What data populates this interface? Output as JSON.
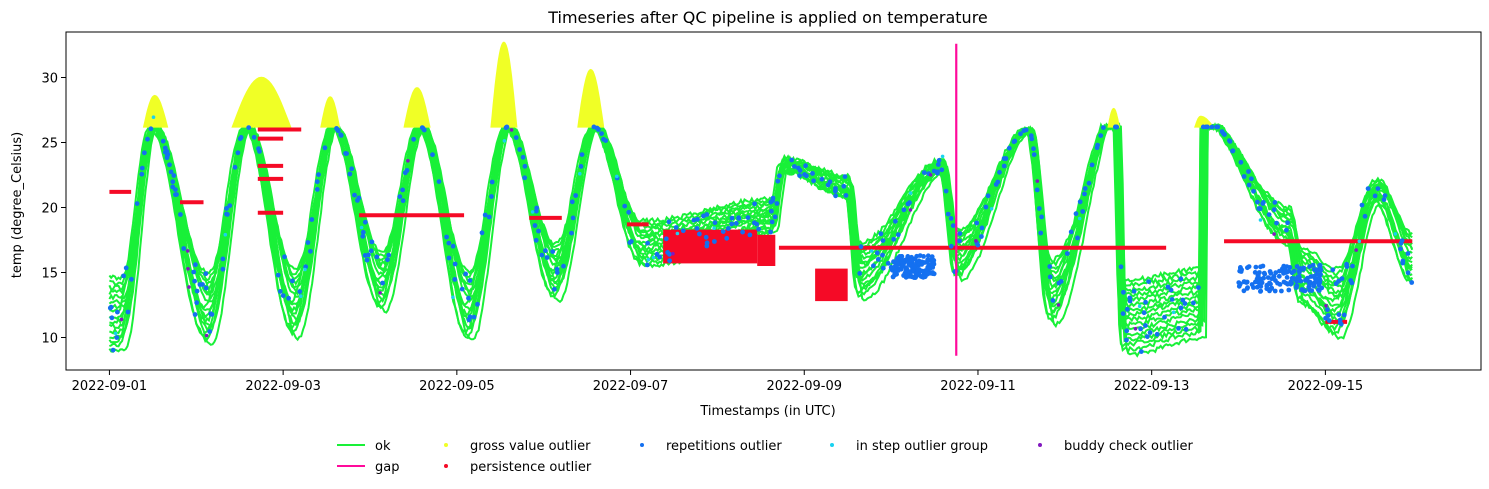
{
  "chart_data": {
    "type": "line",
    "title": "Timeseries after QC pipeline is applied on temperature",
    "xlabel": "Timestamps (in UTC)",
    "ylabel": "temp (degree_Celsius)",
    "x_axis": {
      "type": "date",
      "min": "2022-08-31T12:00",
      "max": "2022-09-16T19:00"
    },
    "xticks": [
      "2022-09-01",
      "2022-09-03",
      "2022-09-05",
      "2022-09-07",
      "2022-09-09",
      "2022-09-11",
      "2022-09-13",
      "2022-09-15"
    ],
    "ylim": [
      7.5,
      33.5
    ],
    "yticks": [
      10,
      15,
      20,
      25,
      30
    ],
    "grid": false,
    "legend_position": "bottom-center",
    "colors": {
      "ok": "#19f038",
      "gap": "#ff0a9b",
      "gross_value_outlier": "#f0ff26",
      "persistence_outlier": "#f50a26",
      "repetitions_outlier": "#1470f0",
      "in_step_outlier_group": "#19d2f0",
      "buddy_check_outlier": "#8219bf"
    },
    "series": [
      {
        "name": "ok",
        "kind": "line",
        "color": "#19f038"
      },
      {
        "name": "gap",
        "kind": "line",
        "color": "#ff0a9b"
      },
      {
        "name": "gross value outlier",
        "kind": "marker",
        "color": "#f0ff26"
      },
      {
        "name": "persistence outlier",
        "kind": "marker",
        "color": "#f50a26"
      },
      {
        "name": "repetitions outlier",
        "kind": "marker",
        "color": "#1470f0"
      },
      {
        "name": "in step outlier group",
        "kind": "marker",
        "color": "#19d2f0"
      },
      {
        "name": "buddy check outlier",
        "kind": "marker",
        "color": "#8219bf"
      }
    ],
    "ok_daily_cycle": {
      "min_times": [
        "2022-09-01T03:00",
        "2022-09-02T03:00",
        "2022-09-03T03:00",
        "2022-09-04T03:00",
        "2022-09-05T03:00",
        "2022-09-06T03:00",
        "2022-09-07T03:00",
        "2022-09-08T15:00",
        "2022-09-09T15:00",
        "2022-09-10T18:00",
        "2022-09-11T20:00",
        "2022-09-12T16:00",
        "2022-09-13T14:00",
        "2022-09-14T17:00",
        "2022-09-15T03:00",
        "2022-09-16T00:00"
      ],
      "min_values": [
        9,
        9.5,
        10,
        12,
        9.7,
        12.9,
        15.5,
        18.0,
        13.0,
        14.5,
        11.0,
        8.7,
        10.0,
        12.5,
        10.0,
        14.0
      ],
      "max_times": [
        "2022-09-01T12:00",
        "2022-09-02T14:00",
        "2022-09-03T14:00",
        "2022-09-04T14:00",
        "2022-09-05T14:00",
        "2022-09-06T14:00",
        "2022-09-08T18:00",
        "2022-09-09T12:00",
        "2022-09-10T14:00",
        "2022-09-11T14:00",
        "2022-09-12T14:00",
        "2022-09-13T14:00",
        "2022-09-14T14:00",
        "2022-09-15T14:00"
      ],
      "max_values": [
        26.2,
        26.2,
        26.2,
        26.2,
        26.2,
        26.2,
        22.7,
        20.7,
        22.6,
        26,
        27.5,
        27.0,
        17.0,
        20.3
      ],
      "spread": 4
    },
    "gross_value_outlier": [
      {
        "start": "2022-09-01T09:30",
        "end": "2022-09-01T16:00",
        "peak": "2022-09-01T12:30",
        "top": 28.6,
        "floor": 26.2
      },
      {
        "start": "2022-09-02T10:00",
        "end": "2022-09-03T02:00",
        "peak": "2022-09-02T18:00",
        "top": 30.0,
        "floor": 26.2
      },
      {
        "start": "2022-09-03T10:30",
        "end": "2022-09-03T15:30",
        "peak": "2022-09-03T13:00",
        "top": 28.5,
        "floor": 26.2
      },
      {
        "start": "2022-09-04T09:30",
        "end": "2022-09-04T16:30",
        "peak": "2022-09-04T13:00",
        "top": 29.2,
        "floor": 26.2
      },
      {
        "start": "2022-09-05T09:30",
        "end": "2022-09-05T16:30",
        "peak": "2022-09-05T13:00",
        "top": 32.7,
        "floor": 26.2
      },
      {
        "start": "2022-09-06T09:30",
        "end": "2022-09-06T16:30",
        "peak": "2022-09-06T13:00",
        "top": 30.6,
        "floor": 26.2
      },
      {
        "start": "2022-09-12T12:00",
        "end": "2022-09-12T15:00",
        "peak": "2022-09-12T13:30",
        "top": 27.6,
        "floor": 26.2
      },
      {
        "start": "2022-09-13T12:00",
        "end": "2022-09-13T17:00",
        "peak": "2022-09-13T13:30",
        "top": 27.0,
        "floor": 26.2
      }
    ],
    "persistence_segments": [
      {
        "start": "2022-09-01T00:00",
        "end": "2022-09-01T06:00",
        "value": 21.2
      },
      {
        "start": "2022-09-01T19:30",
        "end": "2022-09-02T02:00",
        "value": 20.4
      },
      {
        "start": "2022-09-02T17:00",
        "end": "2022-09-03T05:00",
        "value": 26.0
      },
      {
        "start": "2022-09-02T17:00",
        "end": "2022-09-03T00:00",
        "value": 25.3
      },
      {
        "start": "2022-09-02T17:00",
        "end": "2022-09-03T00:00",
        "value": 23.2
      },
      {
        "start": "2022-09-02T17:00",
        "end": "2022-09-03T00:00",
        "value": 22.2
      },
      {
        "start": "2022-09-02T17:00",
        "end": "2022-09-03T00:00",
        "value": 19.6
      },
      {
        "start": "2022-09-03T21:00",
        "end": "2022-09-05T02:00",
        "value": 19.4
      },
      {
        "start": "2022-09-05T20:00",
        "end": "2022-09-06T05:00",
        "value": 19.2
      },
      {
        "start": "2022-09-06T23:00",
        "end": "2022-09-07T05:00",
        "value": 18.7
      },
      {
        "start": "2022-09-08T17:00",
        "end": "2022-09-10T23:00",
        "value": 16.9
      },
      {
        "start": "2022-09-10T23:00",
        "end": "2022-09-13T04:00",
        "value": 16.9
      },
      {
        "start": "2022-09-13T20:00",
        "end": "2022-09-16T00:00",
        "value": 17.4
      },
      {
        "start": "2022-09-15T00:00",
        "end": "2022-09-15T06:00",
        "value": 11.2
      }
    ],
    "persistence_blocks": [
      {
        "start": "2022-09-07T09:00",
        "end": "2022-09-08T11:00",
        "low": 15.7,
        "high": 18.3
      },
      {
        "start": "2022-09-08T11:00",
        "end": "2022-09-08T16:00",
        "low": 15.5,
        "high": 17.9
      },
      {
        "start": "2022-09-09T03:00",
        "end": "2022-09-09T12:00",
        "low": 12.8,
        "high": 15.3
      }
    ],
    "gap": {
      "time": "2022-09-10T18:00",
      "low": 8.6,
      "high": 32.6
    }
  }
}
